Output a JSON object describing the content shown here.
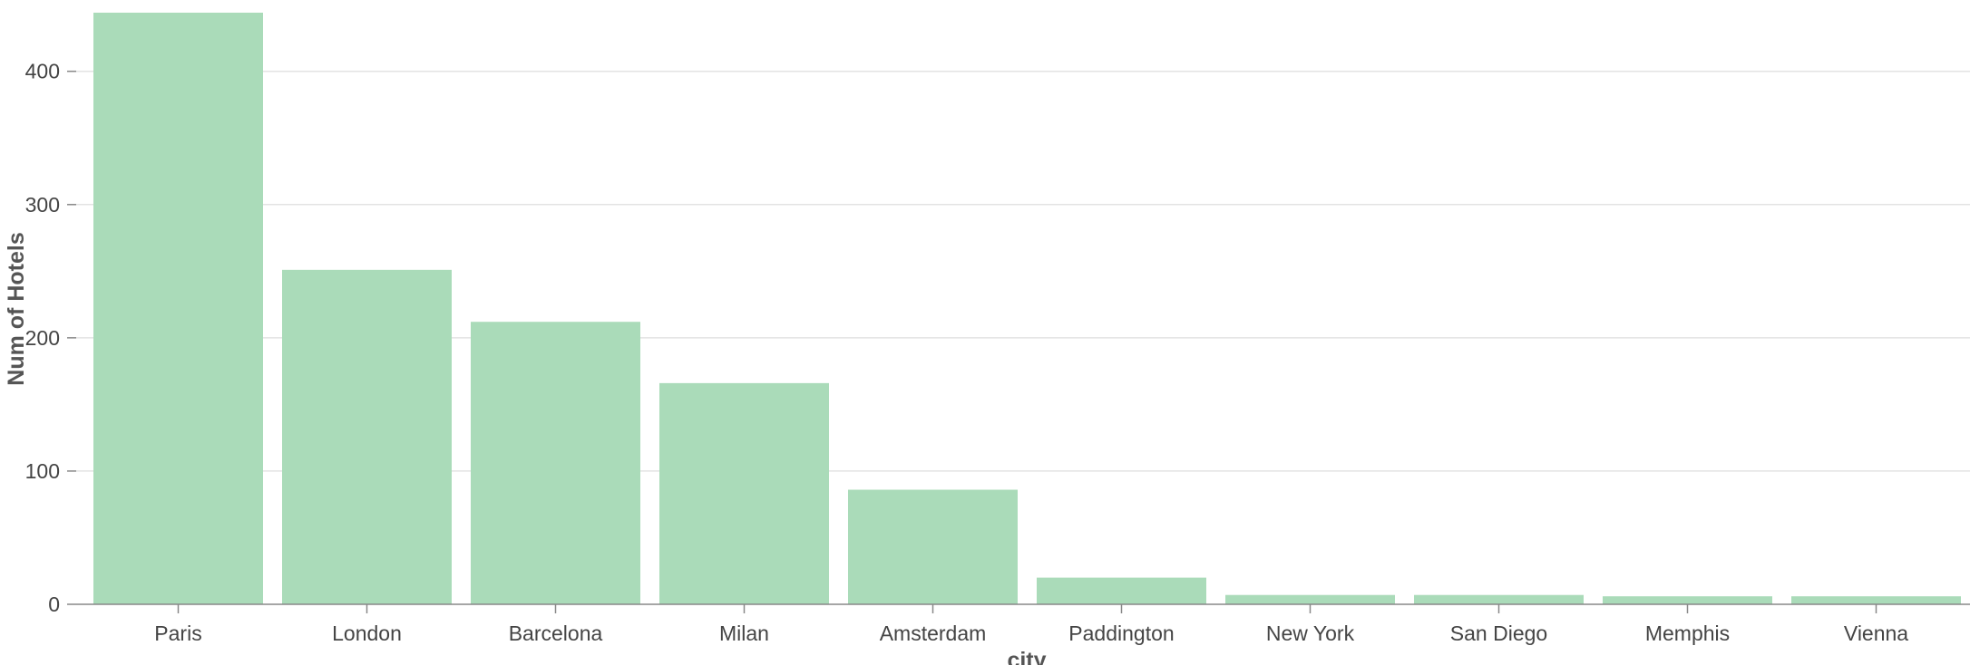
{
  "chart_data": {
    "type": "bar",
    "title": "",
    "xlabel": "city",
    "ylabel": "Num of Hotels",
    "categories": [
      "Paris",
      "London",
      "Barcelona",
      "Milan",
      "Amsterdam",
      "Paddington",
      "New York",
      "San Diego",
      "Memphis",
      "Vienna"
    ],
    "values": [
      444,
      251,
      212,
      166,
      86,
      20,
      7,
      7,
      6,
      6
    ],
    "ylim": [
      0,
      444
    ],
    "yticks": [
      "0",
      "100",
      "200",
      "300",
      "400"
    ],
    "grid": true,
    "legend": "none",
    "bar_color": "#aadbb9",
    "gridline_color": "#e3e3e3",
    "axis_color": "#888888"
  }
}
